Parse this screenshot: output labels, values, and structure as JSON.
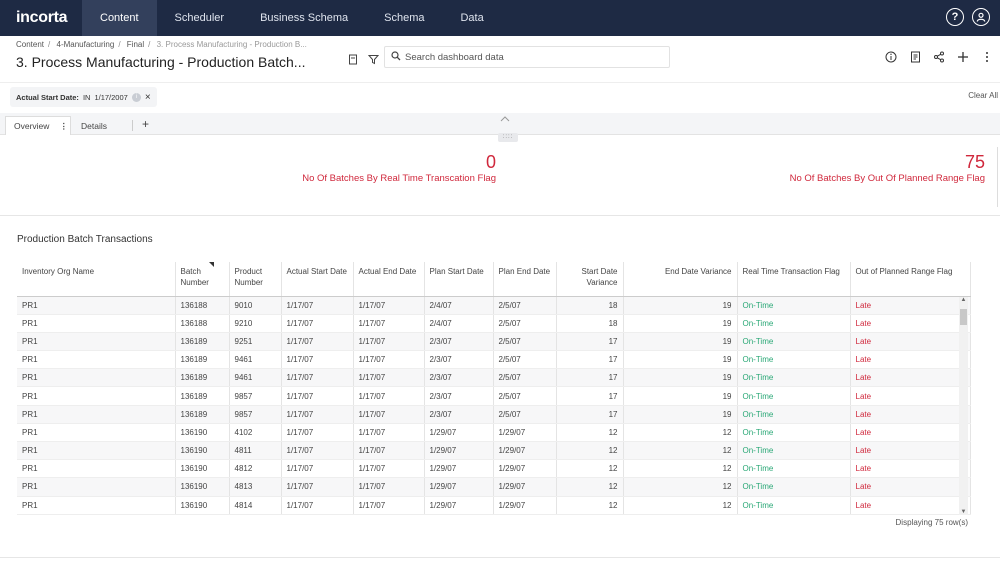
{
  "nav": {
    "logo": "incorta",
    "tabs": [
      {
        "label": "Content",
        "active": true
      },
      {
        "label": "Scheduler"
      },
      {
        "label": "Business Schema"
      },
      {
        "label": "Schema"
      },
      {
        "label": "Data"
      }
    ],
    "help_icon": "?",
    "user_icon": "user-icon"
  },
  "header": {
    "breadcrumb": [
      "Content",
      "4-Manufacturing",
      "Final",
      "3. Process Manufacturing - Production B..."
    ],
    "title": "3. Process Manufacturing - Production Batch...",
    "search_placeholder": "Search dashboard data"
  },
  "filter": {
    "label": "Actual Start Date:",
    "operator": "IN",
    "value": "1/17/2007",
    "clear_all": "Clear All"
  },
  "tabs": {
    "overview": "Overview",
    "details": "Details",
    "add": "+"
  },
  "kpis": [
    {
      "value": "0",
      "label": "No Of Batches By Real Time Transcation Flag"
    },
    {
      "value": "75",
      "label": "No Of Batches By Out Of Planned Range Flag"
    }
  ],
  "table": {
    "title": "Production Batch Transactions",
    "columns": [
      "Inventory Org Name",
      "Batch Number",
      "Product Number",
      "Actual Start Date",
      "Actual End Date",
      "Plan Start Date",
      "Plan End Date",
      "Start Date Variance",
      "End Date Variance",
      "Real Time Transaction Flag",
      "Out of Planned Range Flag"
    ],
    "rows": [
      [
        "PR1",
        "136188",
        "9010",
        "1/17/07",
        "1/17/07",
        "2/4/07",
        "2/5/07",
        "18",
        "19",
        "On-Time",
        "Late"
      ],
      [
        "PR1",
        "136188",
        "9210",
        "1/17/07",
        "1/17/07",
        "2/4/07",
        "2/5/07",
        "18",
        "19",
        "On-Time",
        "Late"
      ],
      [
        "PR1",
        "136189",
        "9251",
        "1/17/07",
        "1/17/07",
        "2/3/07",
        "2/5/07",
        "17",
        "19",
        "On-Time",
        "Late"
      ],
      [
        "PR1",
        "136189",
        "9461",
        "1/17/07",
        "1/17/07",
        "2/3/07",
        "2/5/07",
        "17",
        "19",
        "On-Time",
        "Late"
      ],
      [
        "PR1",
        "136189",
        "9461",
        "1/17/07",
        "1/17/07",
        "2/3/07",
        "2/5/07",
        "17",
        "19",
        "On-Time",
        "Late"
      ],
      [
        "PR1",
        "136189",
        "9857",
        "1/17/07",
        "1/17/07",
        "2/3/07",
        "2/5/07",
        "17",
        "19",
        "On-Time",
        "Late"
      ],
      [
        "PR1",
        "136189",
        "9857",
        "1/17/07",
        "1/17/07",
        "2/3/07",
        "2/5/07",
        "17",
        "19",
        "On-Time",
        "Late"
      ],
      [
        "PR1",
        "136190",
        "4102",
        "1/17/07",
        "1/17/07",
        "1/29/07",
        "1/29/07",
        "12",
        "12",
        "On-Time",
        "Late"
      ],
      [
        "PR1",
        "136190",
        "4811",
        "1/17/07",
        "1/17/07",
        "1/29/07",
        "1/29/07",
        "12",
        "12",
        "On-Time",
        "Late"
      ],
      [
        "PR1",
        "136190",
        "4812",
        "1/17/07",
        "1/17/07",
        "1/29/07",
        "1/29/07",
        "12",
        "12",
        "On-Time",
        "Late"
      ],
      [
        "PR1",
        "136190",
        "4813",
        "1/17/07",
        "1/17/07",
        "1/29/07",
        "1/29/07",
        "12",
        "12",
        "On-Time",
        "Late"
      ],
      [
        "PR1",
        "136190",
        "4814",
        "1/17/07",
        "1/17/07",
        "1/29/07",
        "1/29/07",
        "12",
        "12",
        "On-Time",
        "Late"
      ]
    ],
    "footer": "Displaying 75 row(s)"
  },
  "colors": {
    "nav_bg": "#1e2a44",
    "kpi_red": "#d0283c",
    "ontime_green": "#2aa876",
    "late_red": "#d0283c"
  }
}
